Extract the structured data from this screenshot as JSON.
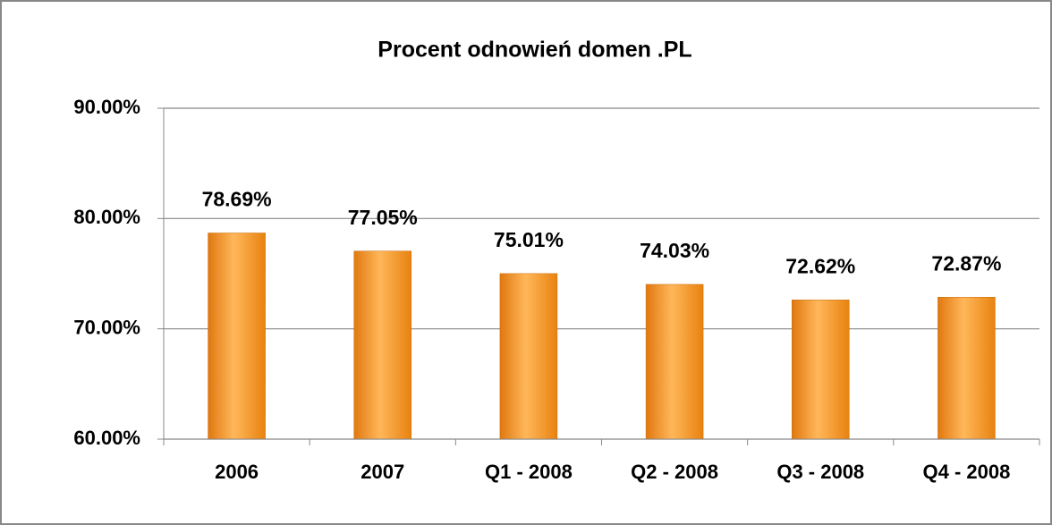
{
  "chart_data": {
    "type": "bar",
    "title": "Procent odnowień domen .PL",
    "categories": [
      "2006",
      "2007",
      "Q1 - 2008",
      "Q2 - 2008",
      "Q3 - 2008",
      "Q4 - 2008"
    ],
    "values": [
      78.69,
      77.05,
      75.01,
      74.03,
      72.62,
      72.87
    ],
    "value_labels": [
      "78.69%",
      "77.05%",
      "75.01%",
      "74.03%",
      "72.62%",
      "72.87%"
    ],
    "color": "#f7941d",
    "ylim": [
      60,
      90
    ],
    "yticks": [
      {
        "value": 60,
        "label": "60.00%"
      },
      {
        "value": 70,
        "label": "70.00%"
      },
      {
        "value": 80,
        "label": "80.00%"
      },
      {
        "value": 90,
        "label": "90.00%"
      }
    ],
    "grid": true
  }
}
